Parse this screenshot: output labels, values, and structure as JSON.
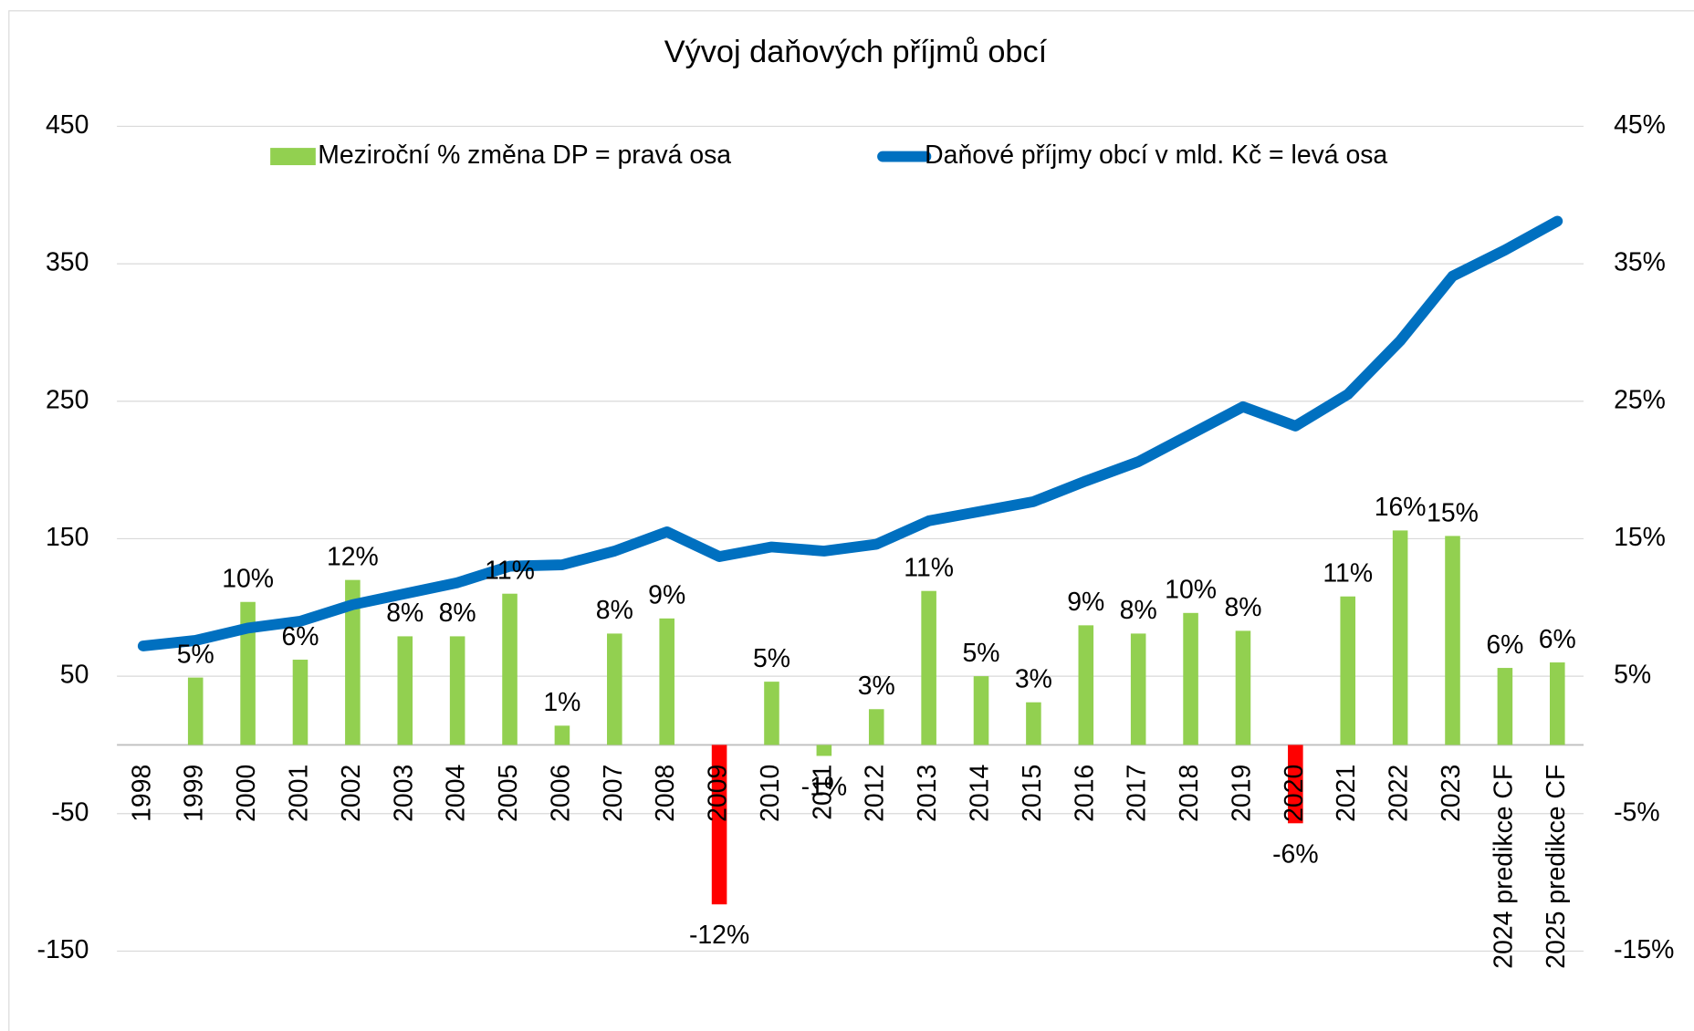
{
  "chart_data": {
    "type": "bar",
    "title": "Vývoj daňových příjmů obcí",
    "categories": [
      "1998",
      "1999",
      "2000",
      "2001",
      "2002",
      "2003",
      "2004",
      "2005",
      "2006",
      "2007",
      "2008",
      "2009",
      "2010",
      "2011",
      "2012",
      "2013",
      "2014",
      "2015",
      "2016",
      "2017",
      "2018",
      "2019",
      "2020",
      "2021",
      "2022",
      "2023",
      "2024 predikce CF",
      "2025 predikce CF"
    ],
    "ylim": [
      -150,
      450
    ],
    "yticks": [
      -150,
      -50,
      50,
      150,
      250,
      350,
      450
    ],
    "y2lim": [
      -15,
      45
    ],
    "y2ticks": [
      {
        "value": -15,
        "label": "-15%"
      },
      {
        "value": -5,
        "label": "-5%"
      },
      {
        "value": 5,
        "label": "5%"
      },
      {
        "value": 15,
        "label": "15%"
      },
      {
        "value": 25,
        "label": "25%"
      },
      {
        "value": 35,
        "label": "35%"
      },
      {
        "value": 45,
        "label": "45%"
      }
    ],
    "grid": true,
    "legend": "top",
    "series": [
      {
        "name": "Meziroční % změna DP = pravá osa",
        "type": "bar",
        "axis": "y2",
        "color": "#92d050",
        "colors": [
          "#92d050",
          "#92d050",
          "#92d050",
          "#92d050",
          "#92d050",
          "#92d050",
          "#92d050",
          "#92d050",
          "#92d050",
          "#92d050",
          "#92d050",
          "#ff0000",
          "#92d050",
          "#92d050",
          "#92d050",
          "#92d050",
          "#92d050",
          "#92d050",
          "#92d050",
          "#92d050",
          "#92d050",
          "#92d050",
          "#ff0000",
          "#92d050",
          "#92d050",
          "#92d050",
          "#92d050",
          "#92d050"
        ],
        "values": [
          null,
          4.9,
          10.4,
          6.2,
          12.0,
          7.9,
          7.9,
          11.0,
          1.4,
          8.1,
          9.2,
          -11.6,
          4.6,
          -0.8,
          2.6,
          11.2,
          5.0,
          3.1,
          8.7,
          8.1,
          9.6,
          8.3,
          -5.7,
          10.8,
          15.6,
          15.2,
          5.6,
          6.0
        ],
        "value_labels": [
          null,
          "5%",
          "10%",
          "6%",
          "12%",
          "8%",
          "8%",
          "11%",
          "1%",
          "8%",
          "9%",
          "-12%",
          "5%",
          "-1%",
          "3%",
          "11%",
          "5%",
          "3%",
          "9%",
          "8%",
          "10%",
          "8%",
          "-6%",
          "11%",
          "16%",
          "15%",
          "6%",
          "6%"
        ]
      },
      {
        "name": "Daňové příjmy obcí v mld. Kč = levá osa",
        "type": "line",
        "axis": "y",
        "color": "#0070c0",
        "values": [
          72,
          76,
          85,
          90,
          102,
          110,
          118,
          130,
          131,
          141,
          155,
          137,
          144,
          141,
          146,
          163,
          170,
          177,
          192,
          206,
          226,
          246,
          232,
          255,
          294,
          341,
          360,
          381
        ]
      }
    ]
  }
}
